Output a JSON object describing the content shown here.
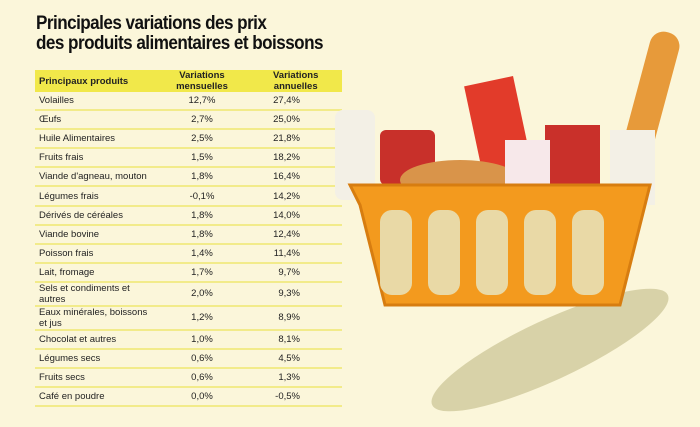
{
  "title_lines": [
    "Principales variations des prix",
    "des produits alimentaires et boissons"
  ],
  "chart_data": {
    "type": "table",
    "columns": [
      "Principaux produits",
      "Variations mensuelles",
      "Variations annuelles"
    ],
    "rows": [
      [
        "Volailles",
        "12,7%",
        "27,4%"
      ],
      [
        "Œufs",
        "2,7%",
        "25,0%"
      ],
      [
        "Huile Alimentaires",
        "2,5%",
        "21,8%"
      ],
      [
        "Fruits frais",
        "1,5%",
        "18,2%"
      ],
      [
        "Viande d'agneau, mouton",
        "1,8%",
        "16,4%"
      ],
      [
        "Légumes frais",
        "-0,1%",
        "14,2%"
      ],
      [
        "Dérivés de céréales",
        "1,8%",
        "14,0%"
      ],
      [
        "Viande bovine",
        "1,8%",
        "12,4%"
      ],
      [
        "Poisson frais",
        "1,4%",
        "11,4%"
      ],
      [
        "Lait, fromage",
        "1,7%",
        "9,7%"
      ],
      [
        "Sels et condiments et autres",
        "2,0%",
        "9,3%"
      ],
      [
        "Eaux minérales, boissons et jus",
        "1,2%",
        "8,9%"
      ],
      [
        "Chocolat et autres",
        "1,0%",
        "8,1%"
      ],
      [
        "Légumes secs",
        "0,6%",
        "4,5%"
      ],
      [
        "Fruits secs",
        "0,6%",
        "1,3%"
      ],
      [
        "Café en poudre",
        "0,0%",
        "-0,5%"
      ]
    ]
  },
  "colors": {
    "background": "#fbf6da",
    "header": "#f1e84a",
    "basket": "#f39a1e"
  }
}
